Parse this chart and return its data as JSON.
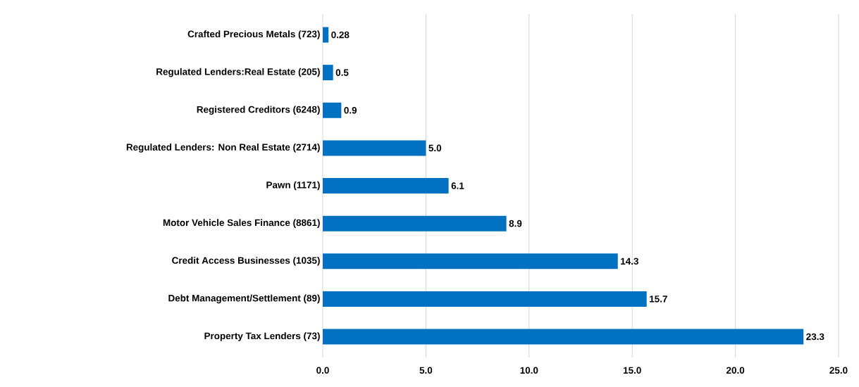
{
  "chart_data": {
    "type": "bar",
    "orientation": "horizontal",
    "categories": [
      "Crafted Precious Metals (723)",
      "Regulated Lenders:Real Estate (205)",
      "Registered Creditors (6248)",
      "Regulated Lenders: Non Real Estate (2714)",
      "Pawn (1171)",
      "Motor Vehicle Sales Finance (8861)",
      "Credit Access Businesses (1035)",
      "Debt Management/Settlement (89)",
      "Property Tax Lenders (73)"
    ],
    "values": [
      0.28,
      0.5,
      0.9,
      5.0,
      6.1,
      8.9,
      14.3,
      15.7,
      23.3
    ],
    "value_labels": [
      "0.28",
      "0.5",
      "0.9",
      "5.0",
      "6.1",
      "8.9",
      "14.3",
      "15.7",
      "23.3"
    ],
    "color": "#0070c0",
    "xlim": [
      0,
      25
    ],
    "xticks": [
      {
        "value": 0,
        "label": "0.0"
      },
      {
        "value": 5,
        "label": "5.0"
      },
      {
        "value": 10,
        "label": "10.0"
      },
      {
        "value": 15,
        "label": "15.0"
      },
      {
        "value": 20,
        "label": "20.0"
      },
      {
        "value": 25,
        "label": "25.0"
      }
    ],
    "grid": "x"
  }
}
